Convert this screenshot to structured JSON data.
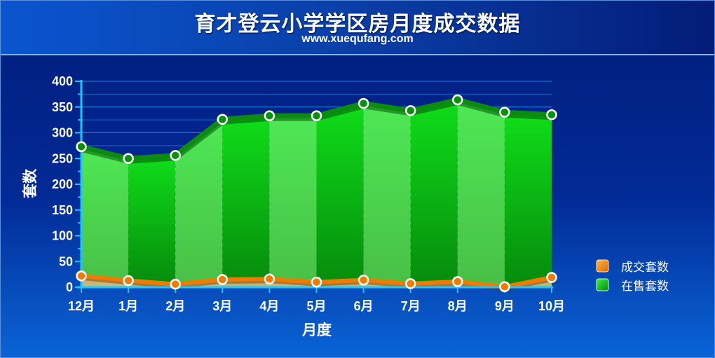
{
  "header": {
    "title": "育才登云小学学区房月度成交数据",
    "subtitle": "www.xuequfang.com"
  },
  "colors": {
    "sold_series": "#f07b00",
    "listed_series": "#12b81a",
    "axis": "#1ec3ff"
  },
  "chart_data": {
    "type": "area",
    "title": "育才登云小学学区房月度成交数据",
    "subtitle": "www.xuequfang.com",
    "xlabel": "月度",
    "ylabel": "套数",
    "categories": [
      "12月",
      "1月",
      "2月",
      "3月",
      "4月",
      "5月",
      "6月",
      "7月",
      "8月",
      "9月",
      "10月"
    ],
    "ylim": [
      0,
      400
    ],
    "yticks": [
      "0",
      "50",
      "100",
      "150",
      "200",
      "250",
      "300",
      "350",
      "400"
    ],
    "grid": true,
    "legend": "right",
    "series": [
      {
        "name": "成交套数",
        "values": [
          22,
          13,
          6,
          15,
          16,
          10,
          14,
          7,
          11,
          1,
          19
        ]
      },
      {
        "name": "在售套数",
        "values": [
          273,
          250,
          256,
          326,
          333,
          333,
          357,
          343,
          364,
          340,
          335
        ]
      }
    ]
  }
}
